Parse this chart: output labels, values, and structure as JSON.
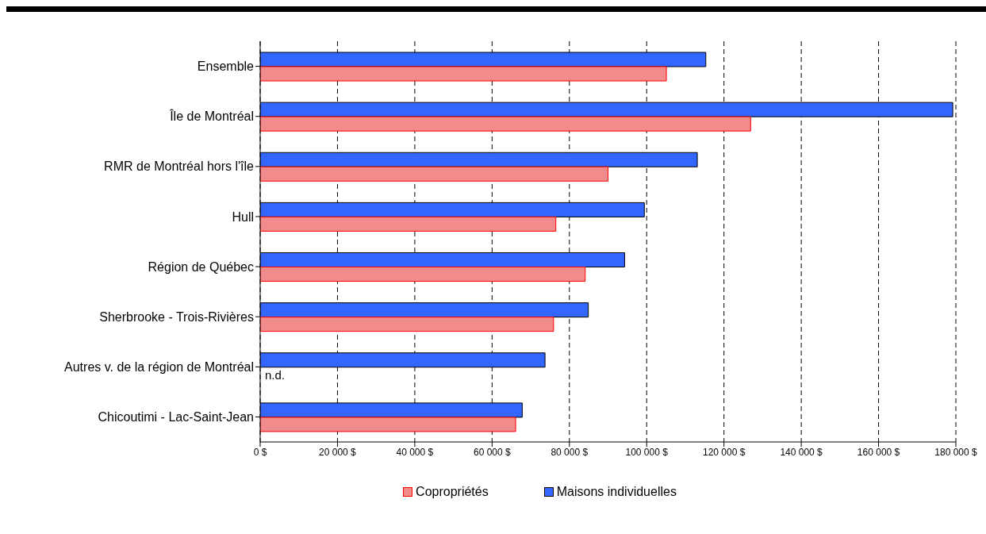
{
  "chart_data": {
    "type": "bar",
    "orientation": "horizontal",
    "categories": [
      "Ensemble",
      "Île de Montréal",
      "RMR de Montréal hors l'île",
      "Hull",
      "Région de Québec",
      "Sherbrooke - Trois-Rivières",
      "Autres v. de la région de Montréal",
      "Chicoutimi - Lac-Saint-Jean"
    ],
    "series": [
      {
        "name": "Maisons individuelles",
        "color": "#3366ff",
        "values": [
          115300,
          179200,
          113100,
          99400,
          94300,
          84900,
          73700,
          67800
        ]
      },
      {
        "name": "Copropriétés",
        "color": "#f28b8b",
        "values": [
          105100,
          126900,
          90000,
          76500,
          84100,
          75900,
          null,
          66100
        ]
      }
    ],
    "xlim": [
      0,
      180000
    ],
    "xticks": [
      {
        "value": 0,
        "label": "0 $"
      },
      {
        "value": 20000,
        "label": "20 000 $"
      },
      {
        "value": 40000,
        "label": "40 000 $"
      },
      {
        "value": 60000,
        "label": "60 000 $"
      },
      {
        "value": 80000,
        "label": "80 000 $"
      },
      {
        "value": 100000,
        "label": "100 000 $"
      },
      {
        "value": 120000,
        "label": "120 000 $"
      },
      {
        "value": 140000,
        "label": "140 000 $"
      },
      {
        "value": 160000,
        "label": "160 000 $"
      },
      {
        "value": 180000,
        "label": "180 000 $"
      }
    ],
    "grid": "x",
    "legend": "bottom",
    "annotations": [
      {
        "text": "n.d.",
        "y": "Autres v. de la région de Montréal"
      }
    ]
  }
}
